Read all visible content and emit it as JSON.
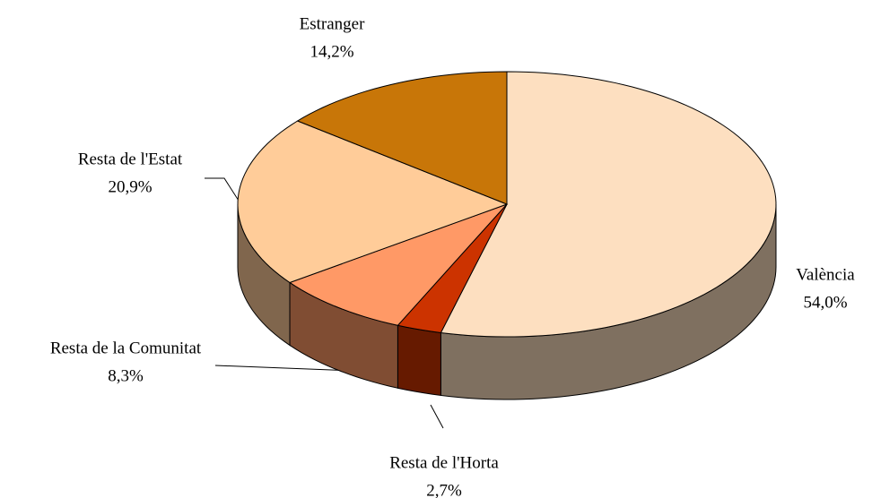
{
  "chart_data": {
    "type": "pie",
    "categories": [
      "València",
      "Resta de l'Horta",
      "Resta de la Comunitat",
      "Resta de l'Estat",
      "Estranger"
    ],
    "values": [
      54.0,
      2.7,
      8.3,
      20.9,
      14.2
    ],
    "value_labels": [
      "54,0%",
      "2,7%",
      "8,3%",
      "20,9%",
      "14,2%"
    ],
    "colors": [
      "#FDDFC0",
      "#CC3300",
      "#FF9966",
      "#FFCC99",
      "#C87608"
    ]
  }
}
